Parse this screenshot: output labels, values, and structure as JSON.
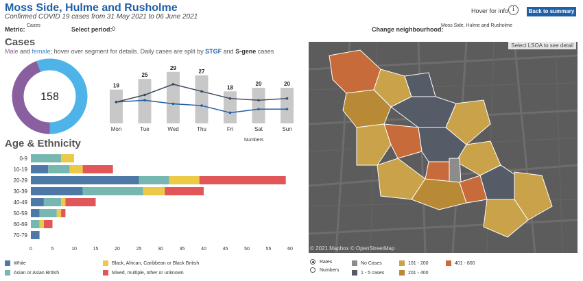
{
  "header": {
    "title": "Moss Side, Hulme and Rusholme",
    "subtitle": "Confirmed COVID 19 cases from 31 May 2021 to 06 June 2021",
    "hover_info": "Hover for info",
    "info_glyph": "i",
    "back_button": "Back to summary"
  },
  "controls": {
    "metric_label": "Metric:",
    "metric_value": "Cases",
    "period_label": "Select period:",
    "period_value": "0",
    "neighbourhood_label": "Change neighbourhood:",
    "neighbourhood_value": "Moss Side, Hulme and Rusholme"
  },
  "cases": {
    "heading": "Cases",
    "desc_male": "Male",
    "desc_and": " and ",
    "desc_female": "female",
    "desc_mid": "; hover over segment for details. Daily cases are split by ",
    "desc_stgf": "STGF",
    "desc_and2": " and ",
    "desc_sgene": "S-gene",
    "desc_end": " cases",
    "total": "158",
    "numbers_label": "Numbers"
  },
  "age": {
    "heading": "Age & Ethnicity"
  },
  "map": {
    "note": "Select LSOA to see detail",
    "copyright": "© 2021 Mapbox © OpenStreetMap"
  },
  "map_legend": {
    "rates": "Rates",
    "numbers": "Numbers",
    "items": [
      {
        "label": "No Cases",
        "color": "#8c8c8c"
      },
      {
        "label": "1 - 5 cases",
        "color": "#555c68"
      },
      {
        "label": "101 - 200",
        "color": "#c9a24a"
      },
      {
        "label": "201 - 400",
        "color": "#b88a36"
      },
      {
        "label": "401 - 800",
        "color": "#c86b3a"
      }
    ]
  },
  "chart_data": [
    {
      "type": "pie",
      "categories": [
        "Male",
        "Female"
      ],
      "values": [
        70,
        88
      ],
      "colors": [
        "#8a5fa0",
        "#4db3e8"
      ],
      "center_label": "158"
    },
    {
      "type": "bar",
      "categories": [
        "Mon",
        "Tue",
        "Wed",
        "Thu",
        "Fri",
        "Sat",
        "Sun"
      ],
      "values": [
        19,
        25,
        29,
        27,
        18,
        20,
        20
      ],
      "ylim": [
        0,
        32
      ],
      "series": [
        {
          "name": "STGF",
          "type": "line",
          "color": "#1f5fa8",
          "values": [
            12,
            13,
            11,
            10,
            6,
            8,
            8
          ]
        },
        {
          "name": "S-gene",
          "type": "line",
          "color": "#3d4a5c",
          "values": [
            12,
            16,
            22,
            18,
            14,
            13,
            14
          ]
        }
      ],
      "xlabel": "Numbers"
    },
    {
      "type": "bar",
      "orientation": "horizontal",
      "stacked": true,
      "categories": [
        "0-9",
        "10-19",
        "20-29",
        "30-39",
        "40-49",
        "50-59",
        "60-69",
        "70-79"
      ],
      "xlim": [
        0,
        60
      ],
      "xticks": [
        0,
        5,
        10,
        15,
        20,
        25,
        30,
        35,
        40,
        45,
        50,
        55,
        60
      ],
      "series": [
        {
          "name": "White",
          "color": "#4e79a7",
          "values": [
            0,
            4,
            25,
            12,
            3,
            2,
            0,
            2
          ]
        },
        {
          "name": "Asian or Asian British",
          "color": "#76b7b2",
          "values": [
            7,
            5,
            7,
            14,
            4,
            4,
            2,
            0
          ]
        },
        {
          "name": "Black, African, Caribbean or Black British",
          "color": "#edc948",
          "values": [
            3,
            3,
            7,
            5,
            1,
            1,
            1,
            0
          ]
        },
        {
          "name": "Mixed, multiple, other or unknown",
          "color": "#e15759",
          "values": [
            0,
            7,
            20,
            9,
            7,
            1,
            2,
            0
          ]
        }
      ]
    }
  ]
}
